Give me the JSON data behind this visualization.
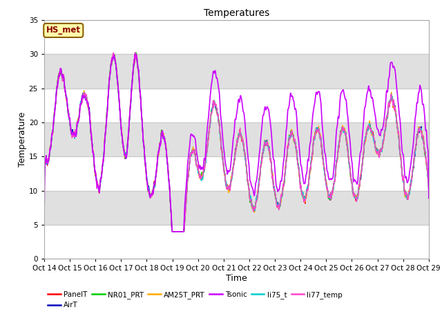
{
  "title": "Temperatures",
  "xlabel": "Time",
  "ylabel": "Temperature",
  "xtick_labels": [
    "Oct 14",
    "Oct 15",
    "Oct 16",
    "Oct 17",
    "Oct 18",
    "Oct 19",
    "Oct 20",
    "Oct 21",
    "Oct 22",
    "Oct 23",
    "Oct 24",
    "Oct 25",
    "Oct 26",
    "Oct 27",
    "Oct 28",
    "Oct 29"
  ],
  "ylim": [
    0,
    35
  ],
  "yticks": [
    0,
    5,
    10,
    15,
    20,
    25,
    30,
    35
  ],
  "annotation": "HS_met",
  "fig_bg": "#ffffff",
  "plot_bg": "#ffffff",
  "series": {
    "PanelT": {
      "color": "#ff0000",
      "lw": 1.0
    },
    "AirT": {
      "color": "#0000bb",
      "lw": 1.0
    },
    "NR01_PRT": {
      "color": "#00cc00",
      "lw": 1.0
    },
    "AM25T_PRT": {
      "color": "#ffaa00",
      "lw": 1.0
    },
    "Tsonic": {
      "color": "#cc00ff",
      "lw": 1.2
    },
    "li75_t": {
      "color": "#00cccc",
      "lw": 1.0
    },
    "li77_temp": {
      "color": "#ff44cc",
      "lw": 1.0
    }
  },
  "hband_colors": [
    "#ffffff",
    "#e0e0e0"
  ],
  "hgrid_color": "#cccccc",
  "hgrid_lw": 1.0,
  "n_days": 15,
  "pts_per_day": 96
}
